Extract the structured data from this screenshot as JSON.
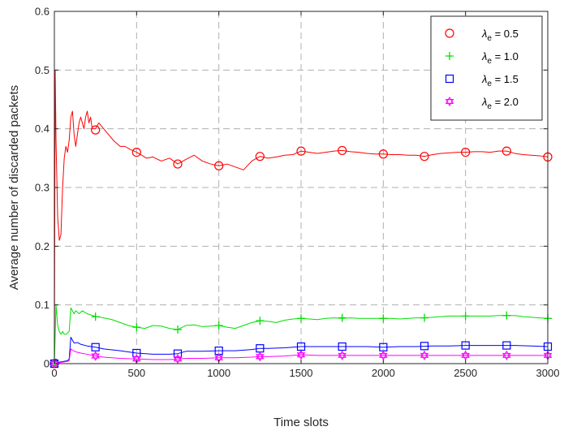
{
  "chart_data": {
    "type": "line",
    "xlabel": "Time slots",
    "ylabel": "Average number of discarded packets",
    "xlim": [
      0,
      3000
    ],
    "ylim": [
      0,
      0.6
    ],
    "xticks": [
      "0",
      "500",
      "1000",
      "1500",
      "2000",
      "2500",
      "3000"
    ],
    "yticks": [
      "0",
      "0.1",
      "0.2",
      "0.3",
      "0.4",
      "0.5",
      "0.6"
    ],
    "grid": true,
    "legend_position": "top-right",
    "marker_x": [
      0,
      250,
      500,
      750,
      1000,
      1250,
      1500,
      1750,
      2000,
      2250,
      2500,
      2750,
      3000
    ],
    "series": [
      {
        "name": "0.5",
        "legend_label": "λe = 0.5",
        "color": "#ff0000",
        "marker": "circle",
        "x": [
          0,
          5,
          10,
          20,
          30,
          40,
          50,
          60,
          70,
          80,
          90,
          100,
          110,
          120,
          130,
          140,
          150,
          160,
          170,
          180,
          190,
          200,
          210,
          220,
          230,
          250,
          270,
          300,
          330,
          360,
          400,
          430,
          460,
          500,
          530,
          560,
          600,
          650,
          700,
          750,
          800,
          850,
          900,
          950,
          1000,
          1050,
          1100,
          1150,
          1200,
          1250,
          1300,
          1350,
          1400,
          1450,
          1500,
          1550,
          1600,
          1650,
          1700,
          1750,
          1800,
          1850,
          1900,
          1950,
          2000,
          2050,
          2100,
          2150,
          2200,
          2250,
          2300,
          2350,
          2400,
          2450,
          2500,
          2550,
          2600,
          2650,
          2700,
          2750,
          2800,
          2850,
          2900,
          2950,
          3000
        ],
        "y": [
          0.0,
          0.5,
          0.38,
          0.25,
          0.21,
          0.22,
          0.3,
          0.35,
          0.37,
          0.36,
          0.38,
          0.42,
          0.43,
          0.39,
          0.37,
          0.39,
          0.41,
          0.42,
          0.41,
          0.4,
          0.42,
          0.43,
          0.41,
          0.42,
          0.4,
          0.4,
          0.41,
          0.4,
          0.39,
          0.38,
          0.37,
          0.37,
          0.365,
          0.36,
          0.355,
          0.35,
          0.352,
          0.345,
          0.35,
          0.34,
          0.348,
          0.355,
          0.345,
          0.34,
          0.337,
          0.34,
          0.335,
          0.33,
          0.345,
          0.353,
          0.35,
          0.352,
          0.355,
          0.356,
          0.362,
          0.36,
          0.358,
          0.36,
          0.362,
          0.363,
          0.361,
          0.36,
          0.358,
          0.357,
          0.357,
          0.356,
          0.356,
          0.355,
          0.355,
          0.353,
          0.356,
          0.358,
          0.359,
          0.36,
          0.36,
          0.361,
          0.361,
          0.36,
          0.362,
          0.362,
          0.358,
          0.356,
          0.355,
          0.354,
          0.352
        ],
        "markers_y": [
          0.0,
          0.398,
          0.36,
          0.34,
          0.337,
          0.353,
          0.362,
          0.363,
          0.357,
          0.353,
          0.36,
          0.362,
          0.352
        ]
      },
      {
        "name": "1.0",
        "legend_label": "λe = 1.0",
        "color": "#00e000",
        "marker": "plus",
        "x": [
          0,
          10,
          20,
          30,
          40,
          50,
          60,
          70,
          80,
          90,
          100,
          110,
          120,
          130,
          150,
          170,
          200,
          230,
          260,
          300,
          350,
          400,
          450,
          500,
          550,
          600,
          650,
          700,
          750,
          800,
          850,
          900,
          950,
          1000,
          1050,
          1100,
          1150,
          1200,
          1250,
          1300,
          1350,
          1400,
          1450,
          1500,
          1550,
          1600,
          1650,
          1700,
          1750,
          1800,
          1850,
          1900,
          1950,
          2000,
          2050,
          2100,
          2150,
          2200,
          2250,
          2300,
          2350,
          2400,
          2450,
          2500,
          2550,
          2600,
          2650,
          2700,
          2750,
          2800,
          2850,
          2900,
          2950,
          3000
        ],
        "y": [
          0.0,
          0.1,
          0.065,
          0.055,
          0.05,
          0.055,
          0.05,
          0.05,
          0.052,
          0.055,
          0.095,
          0.09,
          0.085,
          0.09,
          0.085,
          0.09,
          0.085,
          0.082,
          0.08,
          0.078,
          0.075,
          0.07,
          0.065,
          0.062,
          0.06,
          0.065,
          0.064,
          0.06,
          0.058,
          0.065,
          0.066,
          0.063,
          0.064,
          0.065,
          0.062,
          0.06,
          0.065,
          0.07,
          0.073,
          0.072,
          0.07,
          0.074,
          0.076,
          0.077,
          0.076,
          0.075,
          0.077,
          0.078,
          0.077,
          0.078,
          0.077,
          0.077,
          0.077,
          0.077,
          0.077,
          0.076,
          0.077,
          0.078,
          0.078,
          0.079,
          0.08,
          0.081,
          0.081,
          0.081,
          0.081,
          0.081,
          0.081,
          0.082,
          0.082,
          0.082,
          0.08,
          0.079,
          0.078,
          0.077
        ],
        "markers_y": [
          0.0,
          0.08,
          0.062,
          0.058,
          0.065,
          0.073,
          0.077,
          0.078,
          0.077,
          0.078,
          0.081,
          0.082,
          0.077
        ]
      },
      {
        "name": "1.5",
        "legend_label": "λe = 1.5",
        "color": "#0000ff",
        "marker": "square",
        "x": [
          0,
          10,
          20,
          40,
          60,
          80,
          90,
          100,
          110,
          120,
          140,
          160,
          200,
          250,
          300,
          400,
          500,
          600,
          700,
          750,
          800,
          900,
          1000,
          1100,
          1200,
          1250,
          1300,
          1400,
          1500,
          1600,
          1700,
          1800,
          1900,
          2000,
          2100,
          2200,
          2300,
          2400,
          2500,
          2600,
          2700,
          2800,
          2900,
          3000
        ],
        "y": [
          0.0,
          0.008,
          0.002,
          0.003,
          0.004,
          0.005,
          0.008,
          0.045,
          0.04,
          0.035,
          0.036,
          0.033,
          0.03,
          0.028,
          0.025,
          0.022,
          0.018,
          0.016,
          0.016,
          0.017,
          0.021,
          0.021,
          0.022,
          0.022,
          0.024,
          0.026,
          0.026,
          0.027,
          0.029,
          0.029,
          0.029,
          0.029,
          0.029,
          0.028,
          0.029,
          0.029,
          0.03,
          0.03,
          0.031,
          0.031,
          0.031,
          0.031,
          0.03,
          0.029
        ],
        "markers_y": [
          0.0,
          0.028,
          0.018,
          0.017,
          0.022,
          0.026,
          0.029,
          0.029,
          0.028,
          0.03,
          0.031,
          0.031,
          0.029
        ]
      },
      {
        "name": "2.0",
        "legend_label": "λe = 2.0",
        "color": "#ff00ff",
        "marker": "hexagram",
        "x": [
          0,
          20,
          40,
          60,
          80,
          90,
          100,
          110,
          130,
          160,
          200,
          250,
          300,
          400,
          500,
          600,
          700,
          750,
          800,
          900,
          1000,
          1100,
          1200,
          1250,
          1300,
          1400,
          1500,
          1600,
          1700,
          1800,
          1900,
          2000,
          2100,
          2200,
          2300,
          2400,
          2500,
          2600,
          2700,
          2800,
          2900,
          3000
        ],
        "y": [
          0.0,
          0.001,
          0.002,
          0.003,
          0.004,
          0.005,
          0.025,
          0.023,
          0.02,
          0.018,
          0.016,
          0.013,
          0.011,
          0.009,
          0.008,
          0.007,
          0.007,
          0.008,
          0.009,
          0.009,
          0.01,
          0.01,
          0.011,
          0.012,
          0.012,
          0.013,
          0.015,
          0.014,
          0.014,
          0.014,
          0.014,
          0.014,
          0.014,
          0.014,
          0.014,
          0.014,
          0.014,
          0.014,
          0.014,
          0.014,
          0.014,
          0.014
        ],
        "markers_y": [
          0.0,
          0.013,
          0.008,
          0.008,
          0.01,
          0.012,
          0.015,
          0.014,
          0.014,
          0.014,
          0.014,
          0.014,
          0.014
        ]
      }
    ]
  }
}
